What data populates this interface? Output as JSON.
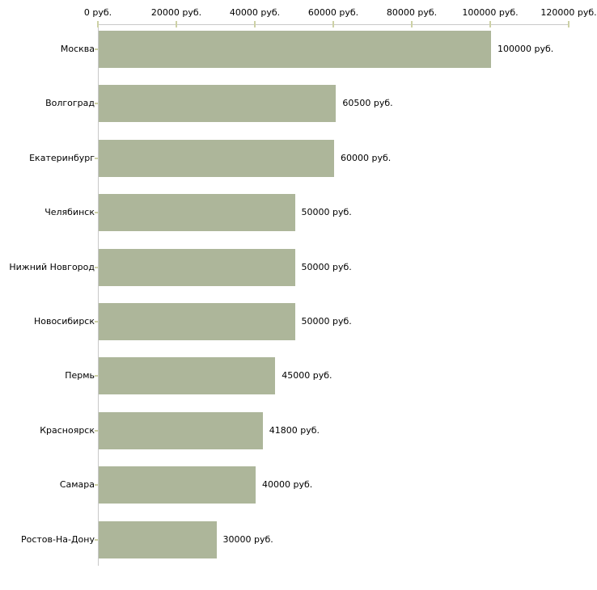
{
  "chart_data": {
    "type": "bar",
    "orientation": "horizontal",
    "title": "",
    "xlabel": "",
    "ylabel": "",
    "unit": "руб.",
    "categories": [
      "Москва",
      "Волгоград",
      "Екатеринбург",
      "Челябинск",
      "Нижний Новгород",
      "Новосибирск",
      "Пермь",
      "Красноярск",
      "Самара",
      "Ростов-На-Дону"
    ],
    "values": [
      100000,
      60500,
      60000,
      50000,
      50000,
      50000,
      45000,
      41800,
      40000,
      30000
    ],
    "value_labels": [
      "100000 руб.",
      "60500 руб.",
      "60000 руб.",
      "50000 руб.",
      "50000 руб.",
      "50000 руб.",
      "45000 руб.",
      "41800 руб.",
      "40000 руб.",
      "30000 руб."
    ],
    "x_axis": {
      "position": "top",
      "range": [
        0,
        120000
      ],
      "ticks": [
        0,
        20000,
        40000,
        60000,
        80000,
        100000,
        120000
      ],
      "tick_labels": [
        "0 руб.",
        "20000 руб.",
        "40000 руб.",
        "60000 руб.",
        "80000 руб.",
        "100000 руб.",
        "120000 руб."
      ]
    },
    "grid": false,
    "legend": false
  },
  "colors": {
    "bar_fill": "#adb69a",
    "axis_line": "#c8c8c8",
    "tick_mark": "#cdd1a5",
    "text": "#000000",
    "background": "#ffffff"
  }
}
